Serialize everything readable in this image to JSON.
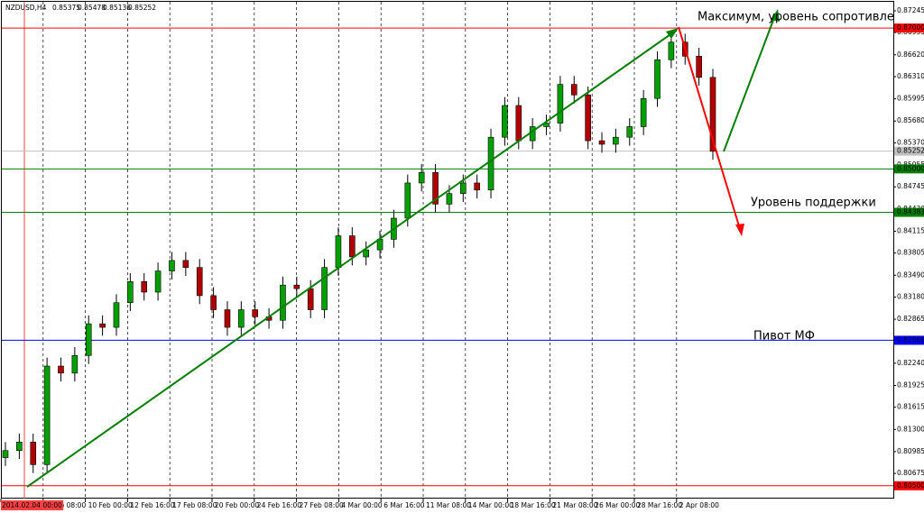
{
  "chart_data": {
    "type": "candlestick",
    "symbol": "NZDUSD,H4",
    "quote": [
      0.85375,
      0.85478,
      0.85136,
      0.85252
    ],
    "up_color": "#00a000",
    "down_color": "#b00000",
    "ylim": [
      0.80318,
      0.87373
    ],
    "yticks": [
      0.87245,
      0.86935,
      {
        "value": 0.8662,
        "label": "0.86620"
      },
      {
        "value": 0.8631,
        "label": "0.86310"
      },
      0.85995,
      {
        "value": 0.8568,
        "label": "0.85680"
      },
      {
        "value": 0.8537,
        "label": "0.85370"
      },
      0.85055,
      0.84745,
      {
        "value": 0.8443,
        "label": "0.84430"
      },
      0.84115,
      0.83805,
      {
        "value": 0.8349,
        "label": "0.83490"
      },
      {
        "value": 0.8318,
        "label": "0.83180"
      },
      0.82865,
      {
        "value": 0.8224,
        "label": "0.82240"
      },
      0.81925,
      0.81615,
      {
        "value": 0.813,
        "label": "0.81300"
      },
      0.80985,
      0.80675
    ],
    "time_labels": [
      "2014.02.04 00:00",
      "6 Feb 08:00",
      "10 Feb 00:00",
      "12 Feb 16:00",
      "17 Feb 08:00",
      "20 Feb 00:00",
      "24 Feb 16:00",
      "27 Feb 08:00",
      "4 Mar 00:00",
      "6 Mar 16:00",
      "11 Mar 08:00",
      "14 Mar 00:00",
      "18 Mar 16:00",
      "21 Mar 08:00",
      "26 Mar 00:00",
      "28 Mar 16:00",
      "2 Apr 08:00"
    ],
    "levels": [
      {
        "value": 0.87,
        "label": "0.87000",
        "color": "#ff0000"
      },
      {
        "value": 0.85252,
        "label": "0.85252",
        "color": "#c0c0c0"
      },
      {
        "value": 0.85,
        "label": "0.85000",
        "color": "#008000"
      },
      {
        "value": 0.84383,
        "label": "0.84383",
        "color": "#008000"
      },
      {
        "value": 0.82566,
        "label": "0.82566",
        "color": "#0000ff"
      },
      {
        "value": 0.805,
        "label": "0.80500",
        "color": "#ff0000"
      }
    ],
    "annotations": [
      "Максимум, уровень сопротивления",
      "Уровень поддержки",
      "Пивот МФ"
    ],
    "open": [
      0.809,
      0.81,
      0.8112,
      0.808,
      0.822,
      0.821,
      0.8235,
      0.828,
      0.8275,
      0.831,
      0.834,
      0.8325,
      0.8355,
      0.837,
      0.836,
      0.832,
      0.83,
      0.8275,
      0.83,
      0.829,
      0.8285,
      0.8335,
      0.833,
      0.83,
      0.836,
      0.8405,
      0.8375,
      0.8385,
      0.84,
      0.843,
      0.848,
      0.8495,
      0.845,
      0.8465,
      0.848,
      0.847,
      0.8545,
      0.859,
      0.854,
      0.856,
      0.8565,
      0.862,
      0.8605,
      0.854,
      0.8535,
      0.8545,
      0.856,
      0.86,
      0.8655,
      0.868,
      0.866,
      0.863
    ],
    "high": [
      0.8112,
      0.8124,
      0.8124,
      0.8232,
      0.8232,
      0.8247,
      0.8292,
      0.8292,
      0.8322,
      0.8352,
      0.8352,
      0.8367,
      0.8382,
      0.8382,
      0.8372,
      0.8332,
      0.8312,
      0.8312,
      0.8312,
      0.8302,
      0.8347,
      0.8347,
      0.8342,
      0.8372,
      0.8417,
      0.8417,
      0.8397,
      0.8412,
      0.8442,
      0.8492,
      0.8507,
      0.8507,
      0.8477,
      0.8492,
      0.8492,
      0.8557,
      0.8602,
      0.8602,
      0.8572,
      0.8577,
      0.8632,
      0.8632,
      0.8617,
      0.8552,
      0.8557,
      0.8572,
      0.8612,
      0.8667,
      0.8692,
      0.8692,
      0.8672,
      0.8642
    ],
    "low": [
      0.8078,
      0.8088,
      0.8068,
      0.8068,
      0.8198,
      0.8198,
      0.8223,
      0.8263,
      0.8263,
      0.8298,
      0.8313,
      0.8313,
      0.8343,
      0.8348,
      0.8308,
      0.8288,
      0.8263,
      0.8263,
      0.8278,
      0.8273,
      0.8273,
      0.8318,
      0.8288,
      0.8288,
      0.8348,
      0.8363,
      0.8363,
      0.8373,
      0.8388,
      0.8418,
      0.8468,
      0.8438,
      0.8438,
      0.8453,
      0.8458,
      0.8458,
      0.8533,
      0.8528,
      0.8528,
      0.8548,
      0.8553,
      0.8593,
      0.8528,
      0.8523,
      0.8523,
      0.8533,
      0.8548,
      0.8588,
      0.8643,
      0.8648,
      0.8618,
      0.8513
    ],
    "close": [
      0.81,
      0.8112,
      0.808,
      0.822,
      0.821,
      0.8235,
      0.828,
      0.8275,
      0.831,
      0.834,
      0.8325,
      0.8355,
      0.837,
      0.836,
      0.832,
      0.83,
      0.8275,
      0.83,
      0.829,
      0.8285,
      0.8335,
      0.833,
      0.83,
      0.836,
      0.8405,
      0.8375,
      0.8385,
      0.84,
      0.843,
      0.848,
      0.8495,
      0.845,
      0.8465,
      0.848,
      0.847,
      0.8545,
      0.859,
      0.854,
      0.856,
      0.8565,
      0.862,
      0.8605,
      0.854,
      0.8535,
      0.8545,
      0.856,
      0.86,
      0.8655,
      0.868,
      0.866,
      0.863,
      0.8525
    ]
  }
}
